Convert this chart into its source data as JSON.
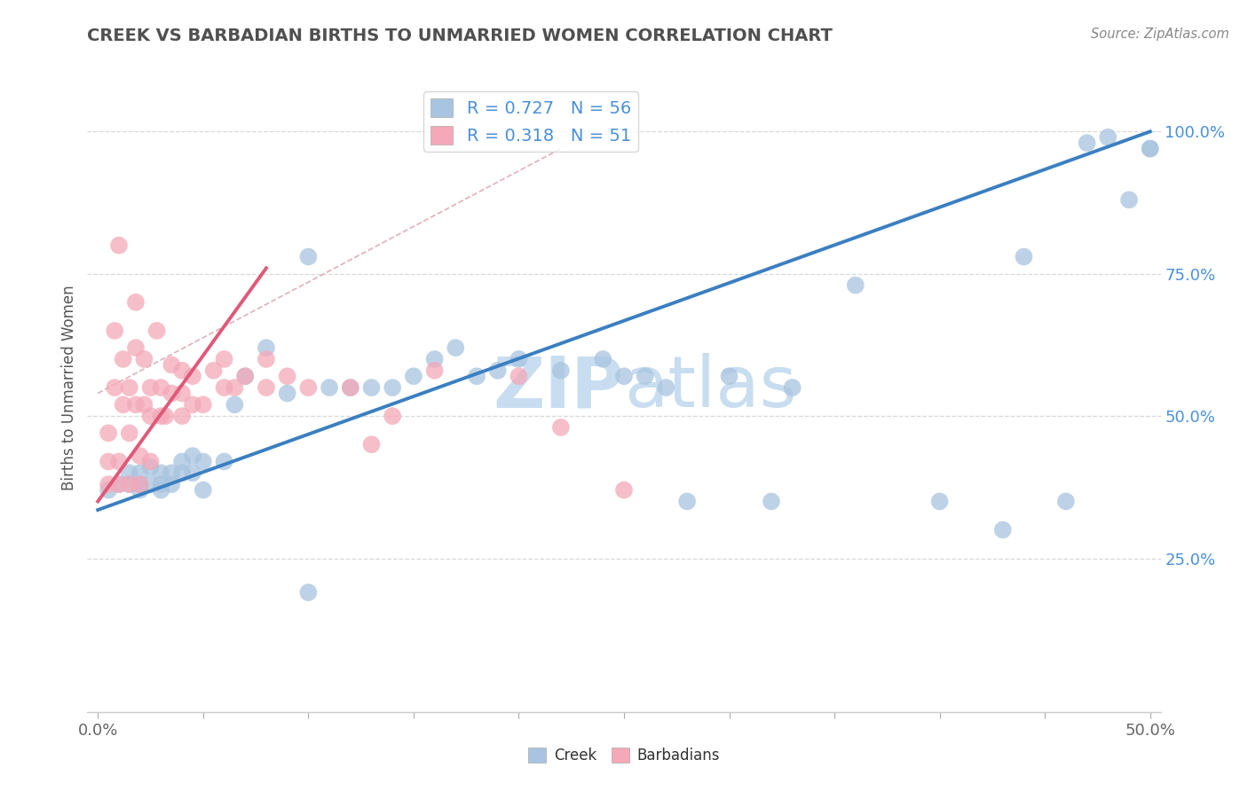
{
  "title": "CREEK VS BARBADIAN BIRTHS TO UNMARRIED WOMEN CORRELATION CHART",
  "source_text": "Source: ZipAtlas.com",
  "ylabel": "Births to Unmarried Women",
  "xlim": [
    -0.005,
    0.505
  ],
  "ylim": [
    -0.02,
    1.12
  ],
  "xtick_vals": [
    0.0,
    0.05,
    0.1,
    0.15,
    0.2,
    0.25,
    0.3,
    0.35,
    0.4,
    0.45,
    0.5
  ],
  "xtick_label_vals": [
    0.0,
    0.5
  ],
  "xtick_labels_show": [
    "0.0%",
    "50.0%"
  ],
  "ytick_labels": [
    "25.0%",
    "50.0%",
    "75.0%",
    "100.0%"
  ],
  "ytick_vals": [
    0.25,
    0.5,
    0.75,
    1.0
  ],
  "creek_color": "#a8c4e0",
  "barbadian_color": "#f4a8b8",
  "creek_line_color": "#3a7fc1",
  "barbadian_line_color": "#e05878",
  "ref_line_color": "#e0b0b8",
  "grid_color": "#d8d8d8",
  "title_color": "#505050",
  "tick_color": "#4a90d9",
  "creek_R": 0.727,
  "creek_N": 56,
  "barbadian_R": 0.318,
  "barbadian_N": 51,
  "creek_line_x0": 0.0,
  "creek_line_y0": 0.335,
  "creek_line_x1": 0.5,
  "creek_line_y1": 1.0,
  "barb_line_x0": 0.0,
  "barb_line_y0": 0.35,
  "barb_line_x1": 0.08,
  "barb_line_y1": 0.76,
  "ref_line_x0": 0.0,
  "ref_line_y0": 0.54,
  "ref_line_x1": 0.22,
  "ref_line_y1": 0.97,
  "creek_scatter_x": [
    0.005,
    0.01,
    0.015,
    0.015,
    0.02,
    0.02,
    0.02,
    0.025,
    0.025,
    0.03,
    0.03,
    0.03,
    0.035,
    0.035,
    0.04,
    0.04,
    0.045,
    0.045,
    0.05,
    0.05,
    0.06,
    0.065,
    0.07,
    0.08,
    0.09,
    0.1,
    0.11,
    0.12,
    0.13,
    0.14,
    0.15,
    0.16,
    0.17,
    0.18,
    0.19,
    0.2,
    0.22,
    0.24,
    0.25,
    0.26,
    0.27,
    0.28,
    0.3,
    0.32,
    0.33,
    0.36,
    0.4,
    0.43,
    0.44,
    0.46,
    0.47,
    0.48,
    0.49,
    0.5,
    0.5,
    0.1
  ],
  "creek_scatter_y": [
    0.37,
    0.38,
    0.38,
    0.4,
    0.37,
    0.38,
    0.4,
    0.38,
    0.41,
    0.37,
    0.38,
    0.4,
    0.38,
    0.4,
    0.4,
    0.42,
    0.4,
    0.43,
    0.37,
    0.42,
    0.42,
    0.52,
    0.57,
    0.62,
    0.54,
    0.78,
    0.55,
    0.55,
    0.55,
    0.55,
    0.57,
    0.6,
    0.62,
    0.57,
    0.58,
    0.6,
    0.58,
    0.6,
    0.57,
    0.57,
    0.55,
    0.35,
    0.57,
    0.35,
    0.55,
    0.73,
    0.35,
    0.3,
    0.78,
    0.35,
    0.98,
    0.99,
    0.88,
    0.97,
    0.97,
    0.19
  ],
  "barbadian_scatter_x": [
    0.005,
    0.005,
    0.005,
    0.008,
    0.008,
    0.01,
    0.01,
    0.01,
    0.012,
    0.012,
    0.015,
    0.015,
    0.015,
    0.018,
    0.018,
    0.018,
    0.02,
    0.02,
    0.022,
    0.022,
    0.025,
    0.025,
    0.025,
    0.028,
    0.03,
    0.03,
    0.032,
    0.035,
    0.035,
    0.04,
    0.04,
    0.04,
    0.045,
    0.045,
    0.05,
    0.055,
    0.06,
    0.06,
    0.065,
    0.07,
    0.08,
    0.08,
    0.09,
    0.1,
    0.12,
    0.13,
    0.14,
    0.16,
    0.2,
    0.22,
    0.25
  ],
  "barbadian_scatter_y": [
    0.38,
    0.42,
    0.47,
    0.55,
    0.65,
    0.38,
    0.42,
    0.8,
    0.52,
    0.6,
    0.38,
    0.47,
    0.55,
    0.62,
    0.52,
    0.7,
    0.38,
    0.43,
    0.52,
    0.6,
    0.42,
    0.5,
    0.55,
    0.65,
    0.5,
    0.55,
    0.5,
    0.54,
    0.59,
    0.5,
    0.54,
    0.58,
    0.52,
    0.57,
    0.52,
    0.58,
    0.55,
    0.6,
    0.55,
    0.57,
    0.55,
    0.6,
    0.57,
    0.55,
    0.55,
    0.45,
    0.5,
    0.58,
    0.57,
    0.48,
    0.37
  ],
  "watermark_zip": "ZIP",
  "watermark_atlas": "atlas",
  "watermark_color": "#c8ddf0",
  "background_color": "#ffffff",
  "figsize": [
    14.06,
    8.92
  ],
  "dpi": 100
}
